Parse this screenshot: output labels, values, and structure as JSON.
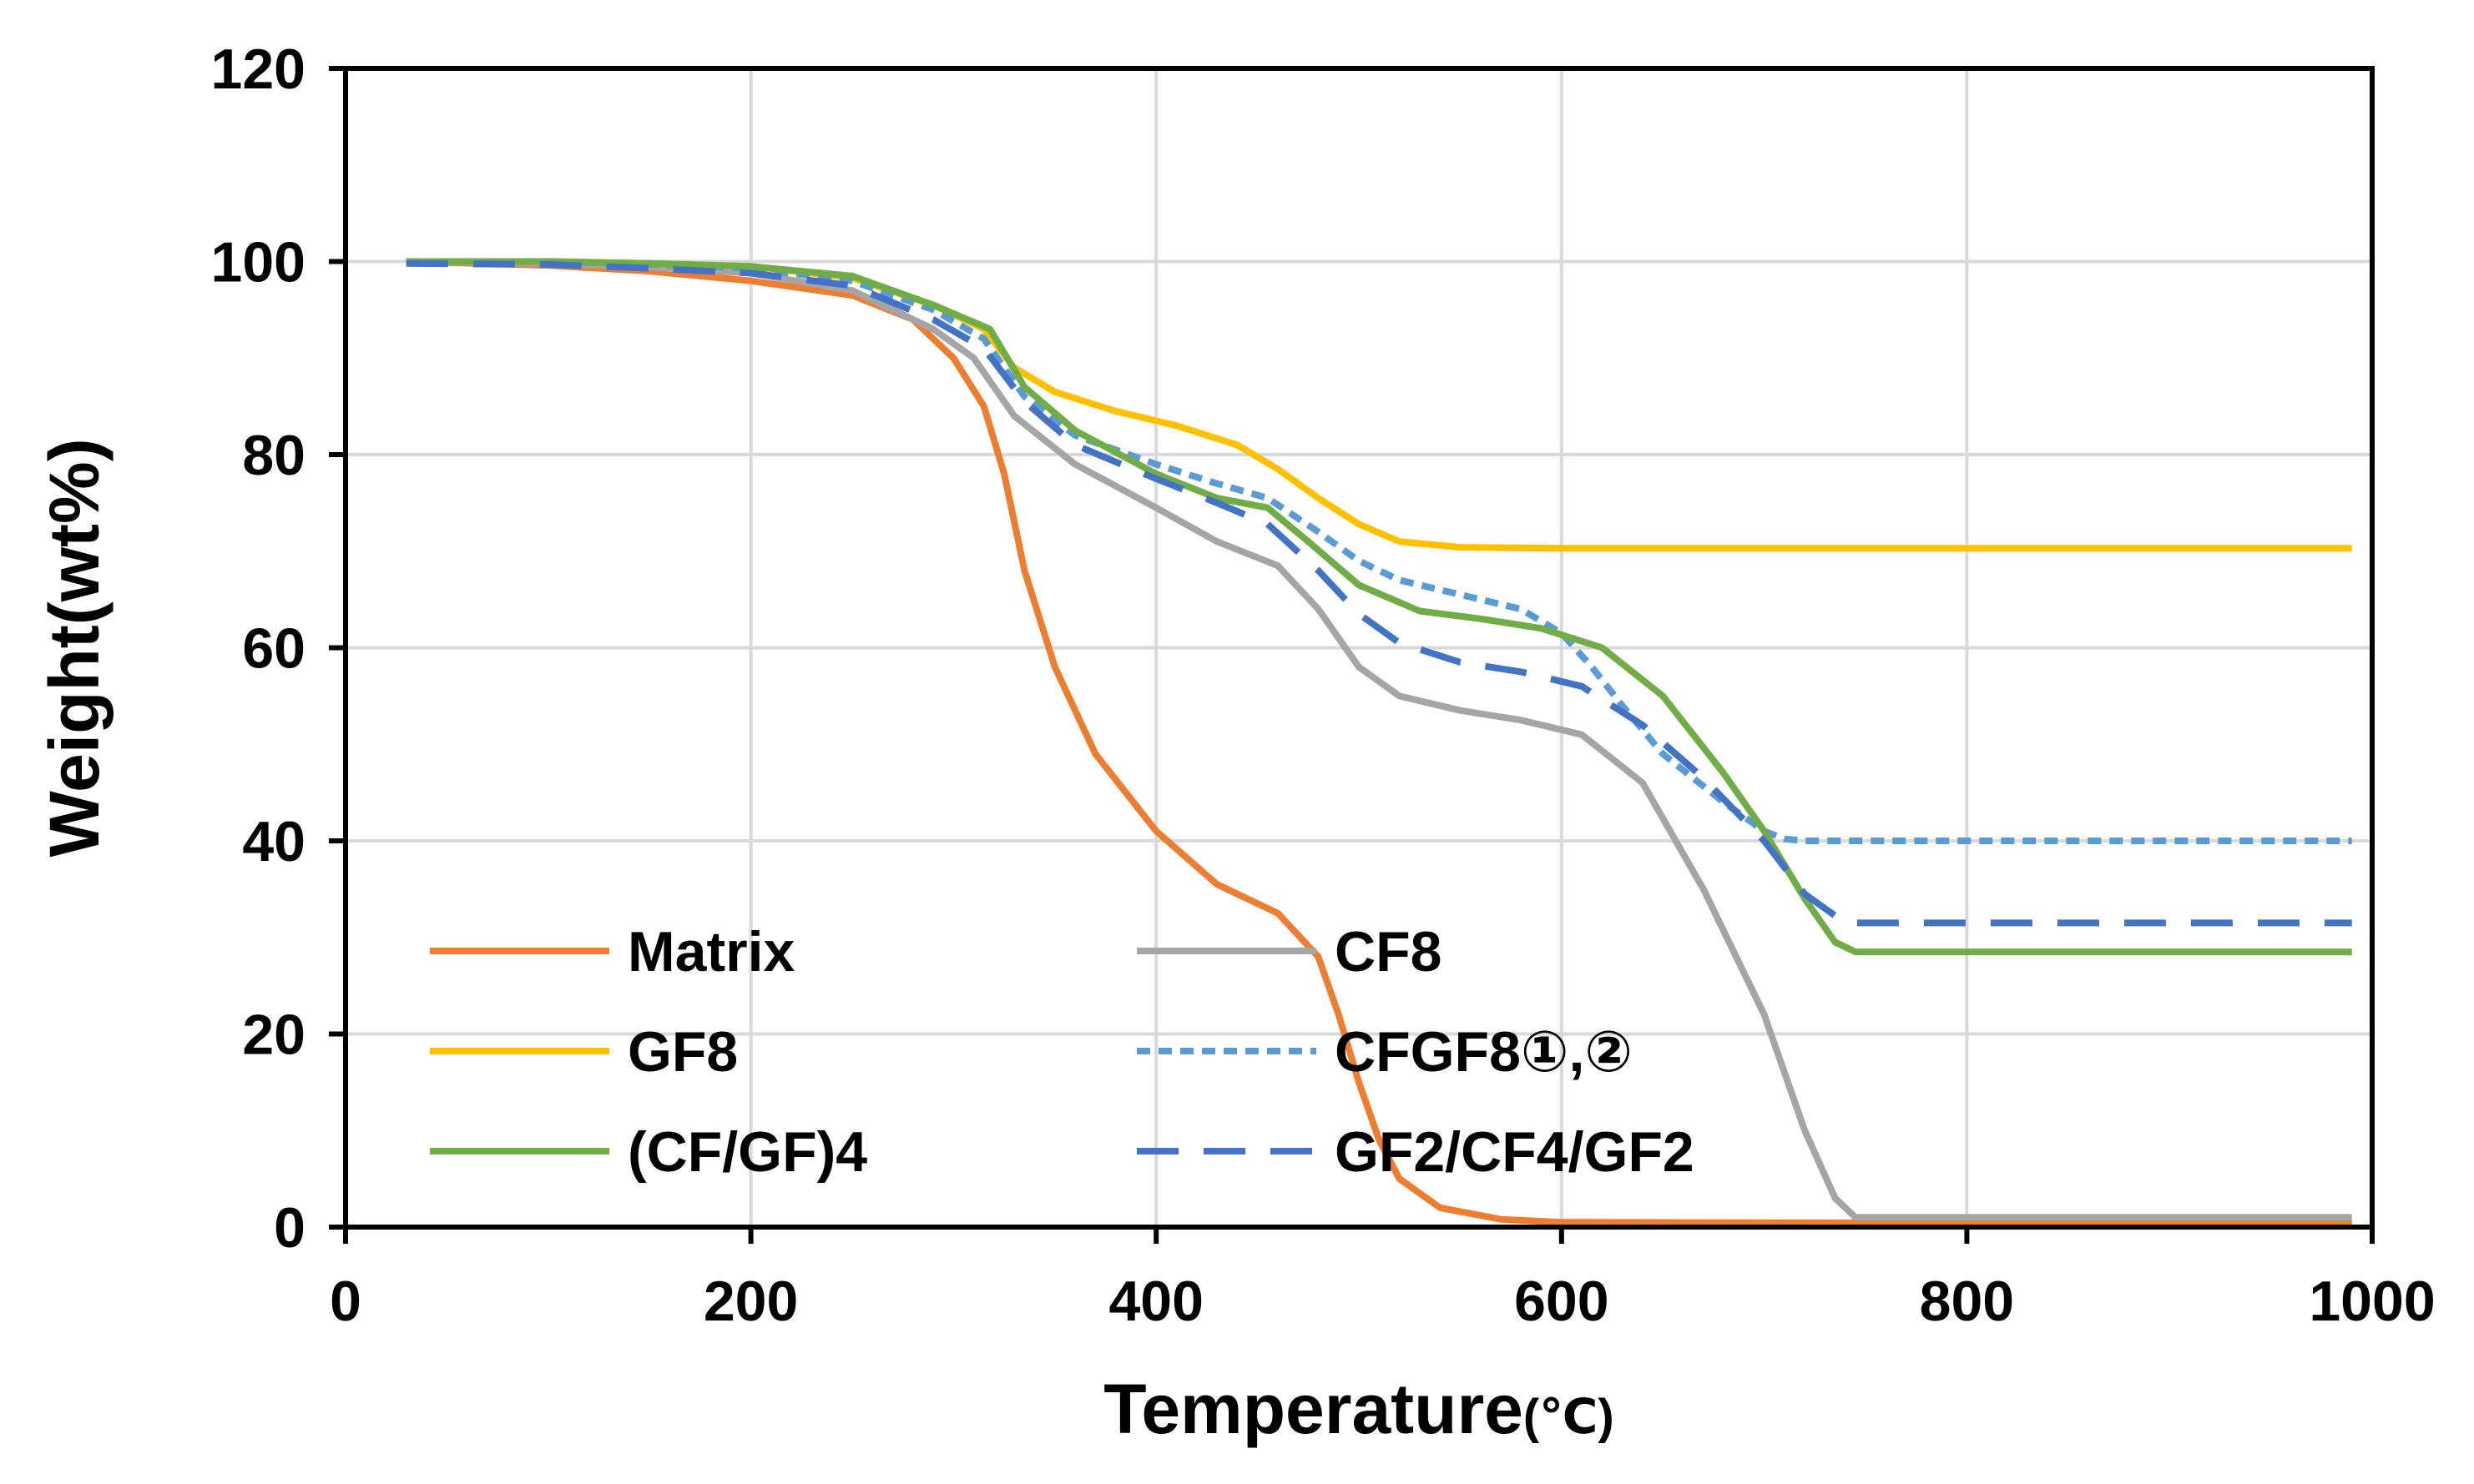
{
  "chart_data": {
    "type": "line",
    "title": "",
    "xlabel": "Temperature",
    "xlabel_unit": "(℃)",
    "ylabel": "Weight(wt%)",
    "xlim": [
      0,
      1000
    ],
    "ylim": [
      0,
      120
    ],
    "xticks": [
      0,
      200,
      400,
      600,
      800,
      1000
    ],
    "yticks": [
      0,
      20,
      40,
      60,
      80,
      100,
      120
    ],
    "grid": true,
    "legend_position": "bottom-left",
    "series": [
      {
        "name": "Matrix",
        "color": "#ED7D31",
        "dash": "solid",
        "points": [
          [
            30,
            100
          ],
          [
            100,
            99.6
          ],
          [
            150,
            99
          ],
          [
            200,
            98
          ],
          [
            250,
            96.5
          ],
          [
            280,
            94
          ],
          [
            300,
            90
          ],
          [
            315,
            85
          ],
          [
            325,
            78
          ],
          [
            335,
            68
          ],
          [
            350,
            58
          ],
          [
            370,
            49
          ],
          [
            400,
            41
          ],
          [
            430,
            35.5
          ],
          [
            460,
            32.5
          ],
          [
            480,
            28
          ],
          [
            490,
            22
          ],
          [
            500,
            15
          ],
          [
            510,
            9
          ],
          [
            520,
            5
          ],
          [
            540,
            2
          ],
          [
            570,
            0.8
          ],
          [
            600,
            0.5
          ],
          [
            800,
            0.4
          ],
          [
            990,
            0.4
          ]
        ]
      },
      {
        "name": "CF8",
        "color": "#A5A5A5",
        "dash": "solid",
        "points": [
          [
            30,
            100
          ],
          [
            100,
            99.8
          ],
          [
            150,
            99.4
          ],
          [
            200,
            98.8
          ],
          [
            250,
            97
          ],
          [
            290,
            93
          ],
          [
            310,
            90
          ],
          [
            330,
            84
          ],
          [
            360,
            79
          ],
          [
            400,
            74.5
          ],
          [
            430,
            71
          ],
          [
            460,
            68.5
          ],
          [
            480,
            64
          ],
          [
            500,
            58
          ],
          [
            520,
            55
          ],
          [
            550,
            53.5
          ],
          [
            580,
            52.5
          ],
          [
            610,
            51
          ],
          [
            640,
            46
          ],
          [
            670,
            35
          ],
          [
            700,
            22
          ],
          [
            720,
            10
          ],
          [
            735,
            3
          ],
          [
            745,
            1
          ],
          [
            800,
            1
          ],
          [
            990,
            1
          ]
        ]
      },
      {
        "name": "GF8",
        "color": "#FFC000",
        "dash": "solid",
        "points": [
          [
            30,
            100
          ],
          [
            100,
            100
          ],
          [
            150,
            99.8
          ],
          [
            200,
            99.5
          ],
          [
            250,
            98.3
          ],
          [
            290,
            95.5
          ],
          [
            315,
            93
          ],
          [
            330,
            89
          ],
          [
            350,
            86.5
          ],
          [
            380,
            84.5
          ],
          [
            410,
            83
          ],
          [
            440,
            81
          ],
          [
            460,
            78.5
          ],
          [
            480,
            75.5
          ],
          [
            500,
            72.8
          ],
          [
            520,
            71
          ],
          [
            550,
            70.4
          ],
          [
            600,
            70.3
          ],
          [
            800,
            70.3
          ],
          [
            990,
            70.3
          ]
        ]
      },
      {
        "name": "CFGF8①,②",
        "color": "#5B9BD5",
        "dash": "dotted",
        "points": [
          [
            30,
            100
          ],
          [
            100,
            100
          ],
          [
            150,
            99.7
          ],
          [
            200,
            99.3
          ],
          [
            250,
            98
          ],
          [
            290,
            95
          ],
          [
            315,
            92
          ],
          [
            335,
            86
          ],
          [
            360,
            82
          ],
          [
            400,
            79
          ],
          [
            430,
            77
          ],
          [
            455,
            75.5
          ],
          [
            480,
            72
          ],
          [
            500,
            69
          ],
          [
            520,
            67
          ],
          [
            550,
            65.5
          ],
          [
            580,
            64
          ],
          [
            600,
            61.5
          ],
          [
            615,
            58
          ],
          [
            630,
            54
          ],
          [
            650,
            49
          ],
          [
            680,
            44
          ],
          [
            700,
            41
          ],
          [
            710,
            40.2
          ],
          [
            720,
            40
          ],
          [
            800,
            40
          ],
          [
            990,
            40
          ]
        ]
      },
      {
        "name": "(CF/GF)4",
        "color": "#70AD47",
        "dash": "solid",
        "points": [
          [
            30,
            100
          ],
          [
            100,
            100
          ],
          [
            150,
            99.8
          ],
          [
            200,
            99.5
          ],
          [
            250,
            98.5
          ],
          [
            290,
            95.5
          ],
          [
            318,
            93
          ],
          [
            335,
            87
          ],
          [
            360,
            82.5
          ],
          [
            400,
            78
          ],
          [
            430,
            75.5
          ],
          [
            455,
            74.5
          ],
          [
            475,
            71
          ],
          [
            500,
            66.5
          ],
          [
            530,
            63.8
          ],
          [
            560,
            63
          ],
          [
            590,
            62
          ],
          [
            620,
            60
          ],
          [
            650,
            55
          ],
          [
            680,
            47
          ],
          [
            700,
            41
          ],
          [
            720,
            34
          ],
          [
            735,
            29.5
          ],
          [
            745,
            28.5
          ],
          [
            800,
            28.5
          ],
          [
            990,
            28.5
          ]
        ]
      },
      {
        "name": "GF2/CF4/GF2",
        "color": "#4472C4",
        "dash": "dashed",
        "points": [
          [
            30,
            99.8
          ],
          [
            100,
            99.7
          ],
          [
            150,
            99.3
          ],
          [
            200,
            98.8
          ],
          [
            250,
            97.5
          ],
          [
            290,
            94
          ],
          [
            315,
            91
          ],
          [
            335,
            85.5
          ],
          [
            360,
            81
          ],
          [
            400,
            77.5
          ],
          [
            430,
            75
          ],
          [
            455,
            72.8
          ],
          [
            480,
            68
          ],
          [
            500,
            63.5
          ],
          [
            520,
            60.5
          ],
          [
            550,
            58.5
          ],
          [
            580,
            57.5
          ],
          [
            610,
            56
          ],
          [
            640,
            52
          ],
          [
            670,
            46.5
          ],
          [
            700,
            40
          ],
          [
            720,
            34.5
          ],
          [
            740,
            31.5
          ],
          [
            800,
            31.5
          ],
          [
            990,
            31.5
          ]
        ]
      }
    ]
  }
}
